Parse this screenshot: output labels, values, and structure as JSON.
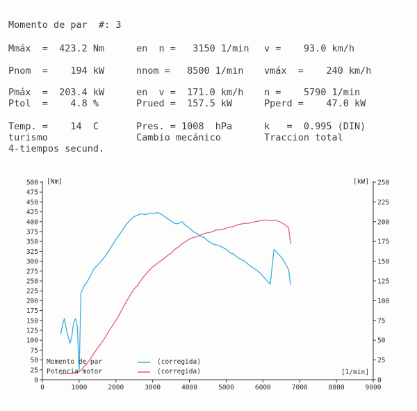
{
  "header": {
    "title_line": "Momento de par  #: 3",
    "rows": [
      {
        "c1": "Mmáx  =  423.2 Nm",
        "c2": "en  n =   3150 1/min",
        "c3": "v =    93.0 km/h"
      },
      {
        "c1": "Pnom  =    194 kW",
        "c2": "nnom =   8500 1/min",
        "c3": "vmáx  =    240 km/h"
      },
      {
        "c1": "Pmáx  =  203.4 kW",
        "c2": "en  v =  171.0 km/h",
        "c3": "n =    5790 1/min"
      },
      {
        "c1": "Ptol  =    4.8 %",
        "c2": "Prued =  157.5 kW",
        "c3": "Pperd =    47.0 kW"
      },
      {
        "c1": "Temp. =    14  C",
        "c2": "Pres. = 1008  hPa",
        "c3": "k   =  0.995 (DIN)"
      },
      {
        "c1": "turismo",
        "c2": "Cambio mecánico",
        "c3": "Traccion total"
      },
      {
        "c1": "4-tiempos secund.",
        "c2": "",
        "c3": ""
      }
    ]
  },
  "chart_data": {
    "type": "line",
    "x": [
      500,
      550,
      600,
      650,
      700,
      750,
      800,
      850,
      900,
      950,
      1000,
      1050,
      1100,
      1150,
      1200,
      1300,
      1400,
      1500,
      1600,
      1700,
      1800,
      1900,
      2000,
      2100,
      2200,
      2300,
      2400,
      2500,
      2600,
      2700,
      2800,
      2900,
      3000,
      3150,
      3300,
      3400,
      3500,
      3600,
      3700,
      3800,
      3900,
      4000,
      4100,
      4200,
      4300,
      4400,
      4500,
      4600,
      4700,
      4800,
      4900,
      5000,
      5100,
      5200,
      5300,
      5400,
      5500,
      5600,
      5700,
      5790,
      5900,
      6000,
      6100,
      6200,
      6300,
      6400,
      6500,
      6600,
      6700,
      6750
    ],
    "series": [
      {
        "name": "Momento de par",
        "axis": "left",
        "unit": "Nm",
        "values": [
          115,
          140,
          155,
          128,
          110,
          92,
          110,
          145,
          155,
          135,
          20,
          220,
          230,
          240,
          245,
          262,
          280,
          290,
          300,
          312,
          325,
          340,
          355,
          368,
          382,
          395,
          405,
          413,
          417,
          420,
          418,
          421,
          421,
          423,
          415,
          408,
          402,
          395,
          395,
          400,
          390,
          385,
          375,
          370,
          363,
          360,
          352,
          345,
          342,
          340,
          335,
          330,
          322,
          318,
          310,
          305,
          300,
          292,
          285,
          280,
          272,
          262,
          252,
          242,
          330,
          320,
          310,
          295,
          278,
          240
        ]
      },
      {
        "name": "Potencia motor",
        "axis": "right",
        "unit": "kW",
        "values": [
          7,
          7.5,
          7.5,
          8,
          8,
          8,
          8,
          8.5,
          9,
          9.5,
          10,
          12,
          15,
          17,
          20,
          26,
          33,
          40,
          46,
          53,
          61,
          68,
          75,
          83,
          92,
          100,
          108,
          115,
          120,
          127,
          133,
          138,
          143,
          148,
          153,
          157,
          160,
          165,
          168,
          172,
          175,
          178,
          180,
          181,
          183,
          185,
          186,
          187,
          189,
          190,
          190,
          192,
          193,
          194,
          196,
          197,
          198,
          198,
          199,
          200,
          201,
          202,
          202,
          201,
          202,
          201,
          199,
          196,
          192,
          172
        ]
      }
    ],
    "left_axis": {
      "unit_label": "[Nm]",
      "ylim": [
        0,
        500
      ],
      "ticks": [
        0,
        25,
        50,
        75,
        100,
        125,
        150,
        175,
        200,
        225,
        250,
        275,
        300,
        325,
        350,
        375,
        400,
        425,
        450,
        475,
        500
      ]
    },
    "right_axis": {
      "unit_label": "[kW]",
      "ylim": [
        0,
        250
      ],
      "ticks": [
        0,
        25,
        50,
        75,
        100,
        125,
        150,
        175,
        200,
        225,
        250
      ]
    },
    "x_axis": {
      "unit_label": "[1/min]",
      "xlim": [
        0,
        9000
      ],
      "ticks": [
        0,
        1000,
        2000,
        3000,
        4000,
        5000,
        6000,
        7000,
        8000,
        9000
      ]
    },
    "legend": [
      {
        "label": "Momento de par",
        "note": "(corregida)",
        "color": "#3aaee0"
      },
      {
        "label": "Potencia motor",
        "note": "(corregida)",
        "color": "#e05a88"
      }
    ],
    "legend_position": "bottom-left",
    "grid": false
  }
}
